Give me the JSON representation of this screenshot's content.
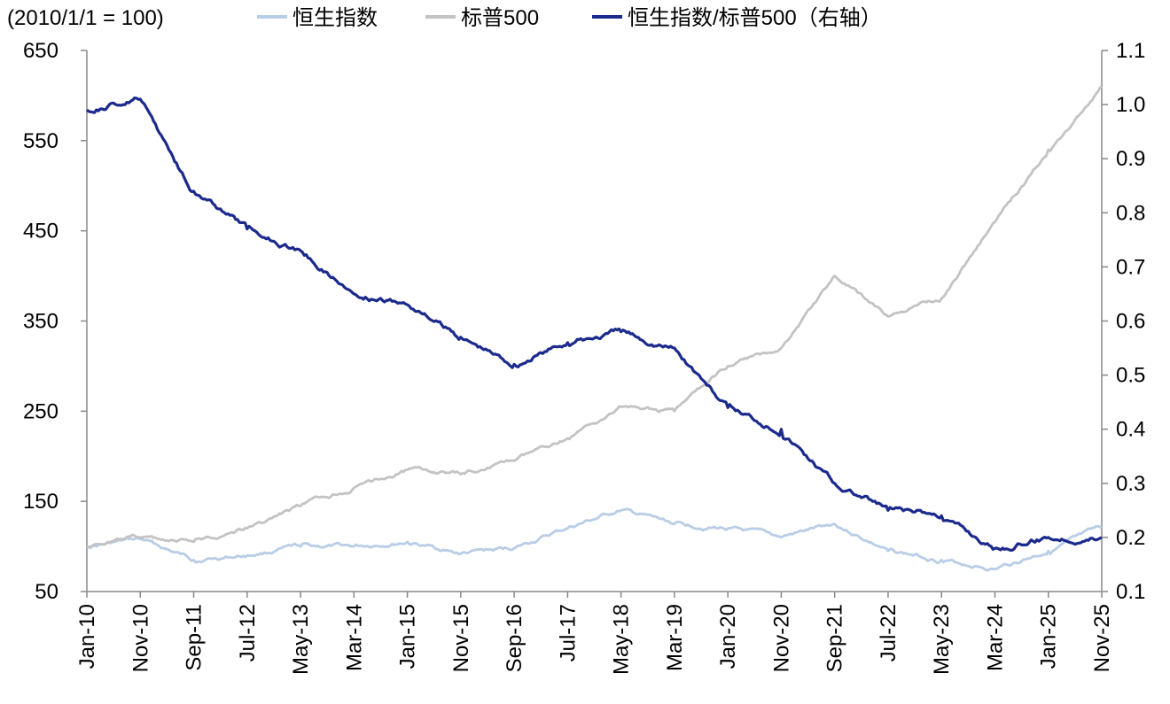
{
  "chart_data": {
    "type": "line",
    "unit_note": "(2010/1/1 = 100)",
    "legend_position": "top",
    "grid": false,
    "y_left": {
      "min": 50,
      "max": 650,
      "ticks": [
        "50",
        "150",
        "250",
        "350",
        "450",
        "550",
        "650"
      ]
    },
    "y_right": {
      "min": 0.1,
      "max": 1.1,
      "ticks": [
        "0.1",
        "0.2",
        "0.3",
        "0.4",
        "0.5",
        "0.6",
        "0.7",
        "0.8",
        "0.9",
        "1.0",
        "1.1"
      ]
    },
    "x_ticks": [
      "Jan-10",
      "Nov-10",
      "Sep-11",
      "Jul-12",
      "May-13",
      "Mar-14",
      "Jan-15",
      "Nov-15",
      "Sep-16",
      "Jul-17",
      "May-18",
      "Mar-19",
      "Jan-20",
      "Nov-20",
      "Sep-21",
      "Jul-22",
      "May-23",
      "Mar-24",
      "Jan-25",
      "Nov-25"
    ],
    "x_start_month": "Jan-10",
    "series": [
      {
        "name": "恒生指数",
        "axis": "left",
        "color": "#b8cde6",
        "x": [
          "Jan-10",
          "Nov-10",
          "Sep-11",
          "Jul-12",
          "May-13",
          "Mar-14",
          "Jan-15",
          "Nov-15",
          "Sep-16",
          "Jul-17",
          "May-18",
          "Mar-19",
          "Jan-20",
          "Nov-20",
          "Sep-21",
          "Jul-22",
          "May-23",
          "Mar-24",
          "Jan-25",
          "Nov-25"
        ],
        "values": [
          100,
          108,
          85,
          90,
          100,
          100,
          105,
          92,
          98,
          120,
          140,
          125,
          120,
          110,
          125,
          95,
          85,
          75,
          95,
          120
        ]
      },
      {
        "name": "标普500",
        "axis": "left",
        "color": "#c3c3c3",
        "x": [
          "Jan-10",
          "Nov-10",
          "Sep-11",
          "Jul-12",
          "May-13",
          "Mar-14",
          "Jan-15",
          "Nov-15",
          "Sep-16",
          "Jul-17",
          "May-18",
          "Mar-19",
          "Jan-20",
          "Nov-20",
          "Sep-21",
          "Jul-22",
          "May-23",
          "Mar-24",
          "Jan-25",
          "Nov-25"
        ],
        "values": [
          100,
          110,
          105,
          120,
          145,
          165,
          185,
          180,
          195,
          220,
          255,
          250,
          300,
          320,
          400,
          355,
          375,
          460,
          540,
          610
        ]
      },
      {
        "name": "恒生指数/标普500（右轴）",
        "axis": "right",
        "color": "#1b2a8c",
        "x": [
          "Jan-10",
          "Nov-10",
          "Sep-11",
          "Jul-12",
          "May-13",
          "Mar-14",
          "Jan-15",
          "Nov-15",
          "Sep-16",
          "Jul-17",
          "May-18",
          "Mar-19",
          "Jan-20",
          "Nov-20",
          "Sep-21",
          "Jul-22",
          "May-23",
          "Mar-24",
          "Jan-25",
          "Nov-25"
        ],
        "values": [
          0.99,
          1.01,
          0.84,
          0.77,
          0.73,
          0.65,
          0.63,
          0.57,
          0.52,
          0.56,
          0.58,
          0.55,
          0.44,
          0.4,
          0.3,
          0.25,
          0.24,
          0.18,
          0.2,
          0.2
        ]
      }
    ]
  }
}
